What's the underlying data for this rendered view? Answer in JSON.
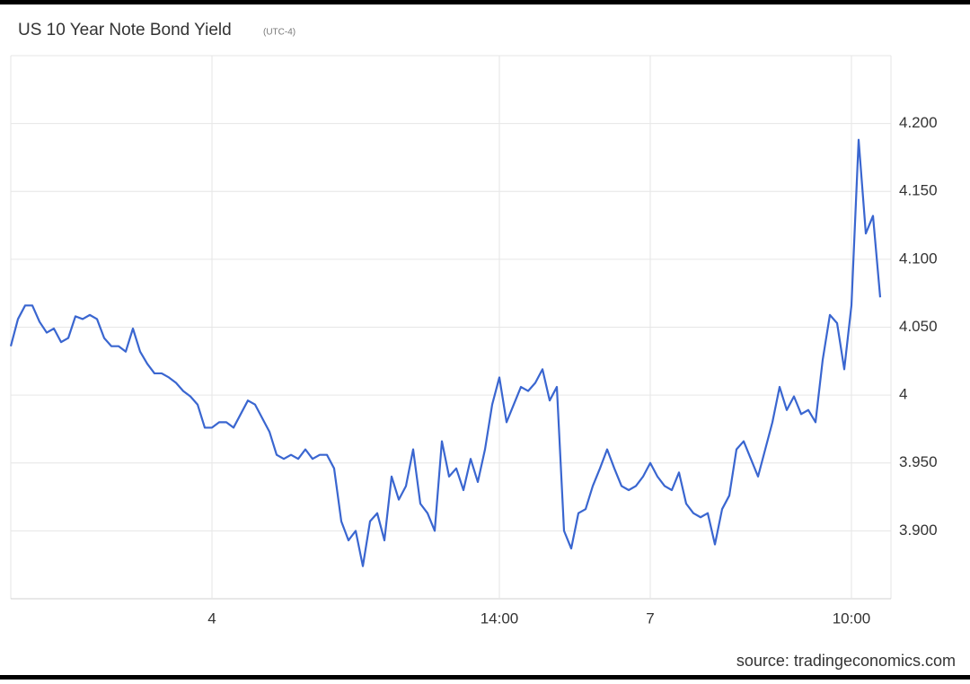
{
  "chart_data": {
    "type": "line",
    "title": "US 10 Year Note Bond Yield",
    "subtitle": "(UTC-4)",
    "source": "source: tradingeconomics.com",
    "categories": [
      null,
      null,
      null,
      null,
      null,
      null,
      null,
      null,
      null,
      null,
      null,
      null,
      null,
      null,
      null,
      null,
      null,
      null,
      null,
      null,
      null,
      null,
      null,
      null,
      null,
      null,
      null,
      null,
      "4",
      null,
      null,
      null,
      null,
      null,
      null,
      null,
      null,
      null,
      null,
      null,
      null,
      null,
      null,
      null,
      null,
      null,
      null,
      null,
      null,
      null,
      null,
      null,
      null,
      null,
      null,
      null,
      null,
      null,
      null,
      null,
      null,
      null,
      null,
      null,
      null,
      null,
      null,
      null,
      "14:00",
      null,
      null,
      null,
      null,
      null,
      null,
      null,
      null,
      null,
      null,
      null,
      null,
      null,
      null,
      null,
      null,
      null,
      null,
      null,
      null,
      "7",
      null,
      null,
      null,
      null,
      null,
      null,
      null,
      null,
      null,
      null,
      null,
      null,
      null,
      null,
      null,
      null,
      null,
      null,
      null,
      null,
      null,
      null,
      null,
      null,
      null,
      null,
      null,
      "10:00",
      null,
      null,
      null,
      null
    ],
    "values": [
      4.036,
      4.056,
      4.066,
      4.066,
      4.054,
      4.046,
      4.049,
      4.039,
      4.042,
      4.058,
      4.056,
      4.059,
      4.056,
      4.042,
      4.036,
      4.036,
      4.032,
      4.049,
      4.032,
      4.023,
      4.016,
      4.016,
      4.013,
      4.009,
      4.003,
      3.999,
      3.993,
      3.976,
      3.976,
      3.98,
      3.98,
      3.976,
      3.986,
      3.996,
      3.993,
      3.983,
      3.973,
      3.956,
      3.953,
      3.956,
      3.953,
      3.96,
      3.953,
      3.956,
      3.956,
      3.946,
      3.907,
      3.893,
      3.9,
      3.874,
      3.907,
      3.913,
      3.893,
      3.94,
      3.923,
      3.933,
      3.96,
      3.92,
      3.913,
      3.9,
      3.966,
      3.94,
      3.946,
      3.93,
      3.953,
      3.936,
      3.96,
      3.993,
      4.013,
      3.98,
      3.993,
      4.006,
      4.003,
      4.009,
      4.019,
      3.996,
      4.006,
      3.9,
      3.887,
      3.913,
      3.916,
      3.933,
      3.946,
      3.96,
      3.946,
      3.933,
      3.93,
      3.933,
      3.94,
      3.95,
      3.94,
      3.933,
      3.93,
      3.943,
      3.92,
      3.913,
      3.91,
      3.913,
      3.89,
      3.916,
      3.926,
      3.96,
      3.966,
      3.953,
      3.94,
      3.96,
      3.98,
      4.006,
      3.989,
      3.999,
      3.986,
      3.989,
      3.98,
      4.026,
      4.059,
      4.053,
      4.019,
      4.066,
      4.188,
      4.119,
      4.132,
      4.072
    ],
    "color": "#3a66d0",
    "ylim": [
      3.85,
      4.25
    ],
    "yticks": [
      {
        "value": 3.9,
        "label": "3.900"
      },
      {
        "value": 3.95,
        "label": "3.950"
      },
      4,
      {
        "value": 4.05,
        "label": "4.050"
      },
      {
        "value": 4.1,
        "label": "4.100"
      },
      {
        "value": 4.15,
        "label": "4.150"
      },
      {
        "value": 4.2,
        "label": "4.200"
      }
    ],
    "grid": true
  }
}
